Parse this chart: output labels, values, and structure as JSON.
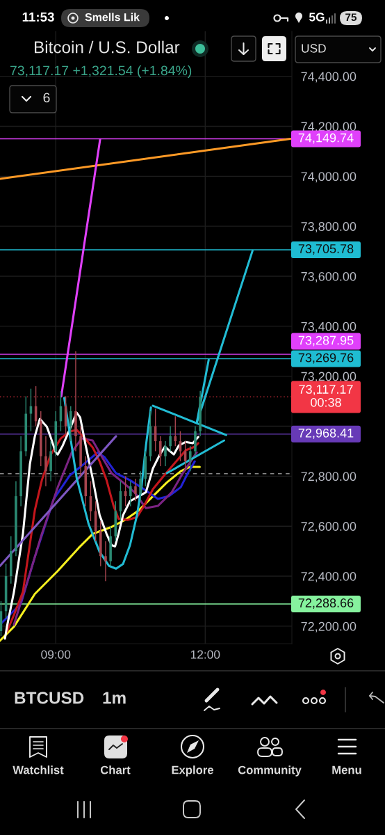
{
  "chart_data": {
    "type": "candlestick",
    "title": "Bitcoin / U.S. Dollar",
    "subtitle": "73,117.17 +1,321.54 (+1.84%)",
    "x": [
      7.9,
      8.0,
      8.1,
      8.2,
      8.3,
      8.4,
      8.5,
      8.6,
      8.7,
      8.8,
      8.9,
      9.0,
      9.1,
      9.2,
      9.3,
      9.4,
      9.5,
      9.6,
      9.7,
      9.8,
      9.9,
      10.0,
      10.1,
      10.2,
      10.3,
      10.4,
      10.5,
      10.6,
      10.7,
      10.8,
      10.9,
      11.0,
      11.1,
      11.2,
      11.3,
      11.4,
      11.5,
      11.6,
      11.7,
      11.8,
      11.9
    ],
    "ohlc": [
      [
        72180,
        72300,
        72160,
        72260
      ],
      [
        72260,
        72450,
        72230,
        72400
      ],
      [
        72400,
        72560,
        72370,
        72500
      ],
      [
        72500,
        72780,
        72480,
        72720
      ],
      [
        72720,
        72960,
        72680,
        72900
      ],
      [
        72900,
        73120,
        72880,
        73050
      ],
      [
        73050,
        73150,
        72980,
        73080
      ],
      [
        73080,
        73160,
        73000,
        73020
      ],
      [
        73020,
        73060,
        72840,
        72880
      ],
      [
        72880,
        72960,
        72760,
        72820
      ],
      [
        72820,
        72940,
        72780,
        72900
      ],
      [
        72900,
        73060,
        72880,
        73020
      ],
      [
        73020,
        73140,
        72980,
        73080
      ],
      [
        73080,
        73120,
        72960,
        73000
      ],
      [
        73000,
        73080,
        72940,
        73060
      ],
      [
        73060,
        73300,
        72900,
        72960
      ],
      [
        72960,
        73000,
        72800,
        72840
      ],
      [
        72840,
        72880,
        72680,
        72720
      ],
      [
        72720,
        72780,
        72620,
        72660
      ],
      [
        72660,
        72700,
        72540,
        72580
      ],
      [
        72580,
        72620,
        72440,
        72480
      ],
      [
        72480,
        72540,
        72380,
        72460
      ],
      [
        72460,
        72600,
        72440,
        72560
      ],
      [
        72560,
        72700,
        72540,
        72660
      ],
      [
        72660,
        72780,
        72620,
        72740
      ],
      [
        72740,
        72800,
        72680,
        72720
      ],
      [
        72720,
        72780,
        72680,
        72760
      ],
      [
        72760,
        72790,
        72700,
        72730
      ],
      [
        72730,
        72820,
        72700,
        72790
      ],
      [
        72790,
        72900,
        72760,
        72880
      ],
      [
        72880,
        73060,
        72860,
        73000
      ],
      [
        73000,
        73070,
        72900,
        72940
      ],
      [
        72940,
        72960,
        72840,
        72880
      ],
      [
        72880,
        72940,
        72840,
        72920
      ],
      [
        72920,
        73000,
        72900,
        72960
      ],
      [
        72960,
        73040,
        72920,
        72940
      ],
      [
        72940,
        72980,
        72860,
        72900
      ],
      [
        72900,
        72940,
        72820,
        72860
      ],
      [
        72860,
        72920,
        72820,
        72900
      ],
      [
        72900,
        73000,
        72880,
        72980
      ],
      [
        72980,
        73141,
        72960,
        73117.17
      ]
    ],
    "colors": [
      "#2b8a73",
      "#2b8a73",
      "#2b8a73",
      "#2b8a73",
      "#2b8a73",
      "#2b8a73",
      "#2b8a73",
      "#a8464f",
      "#a8464f",
      "#a8464f",
      "#2b8a73",
      "#2b8a73",
      "#2b8a73",
      "#a8464f",
      "#2b8a73",
      "#a8464f",
      "#a8464f",
      "#a8464f",
      "#a8464f",
      "#a8464f",
      "#a8464f",
      "#a8464f",
      "#2b8a73",
      "#2b8a73",
      "#2b8a73",
      "#a8464f",
      "#2b8a73",
      "#a8464f",
      "#2b8a73",
      "#2b8a73",
      "#2b8a73",
      "#a8464f",
      "#a8464f",
      "#2b8a73",
      "#2b8a73",
      "#a8464f",
      "#a8464f",
      "#a8464f",
      "#2b8a73",
      "#2b8a73",
      "#2b8a73"
    ],
    "series": [
      {
        "type": "line",
        "color": "#f5ef1f",
        "x": [
          7.88,
          8.16,
          8.58,
          9.04,
          9.46,
          9.74,
          10.12,
          10.39,
          10.67,
          10.95,
          11.23,
          11.51,
          11.69,
          11.89
        ],
        "values": [
          72142,
          72198,
          72329,
          72421,
          72513,
          72569,
          72597,
          72625,
          72664,
          72720,
          72775,
          72820,
          72837,
          72837
        ]
      },
      {
        "type": "line",
        "color": "#2222d4",
        "x": [
          7.88,
          8.3,
          8.58,
          8.96,
          9.28,
          9.56,
          9.84,
          9.98,
          10.21,
          10.49,
          10.77,
          11.05,
          11.27,
          11.51,
          11.65,
          11.79
        ],
        "values": [
          72206,
          72290,
          72477,
          72709,
          72803,
          72848,
          72895,
          72876,
          72812,
          72784,
          72748,
          72709,
          72720,
          72756,
          72812,
          72859
        ]
      },
      {
        "type": "line",
        "color": "#7b2382",
        "x": [
          8.16,
          8.44,
          8.72,
          9.04,
          9.32,
          9.52,
          9.74,
          9.93,
          10.12,
          10.35,
          10.58,
          10.81,
          11.05,
          11.33,
          11.55,
          11.83
        ],
        "values": [
          72206,
          72385,
          72569,
          72756,
          72895,
          72951,
          72943,
          72876,
          72812,
          72775,
          72736,
          72672,
          72681,
          72736,
          72812,
          72895
        ]
      },
      {
        "type": "line",
        "color": "#c4161c",
        "x": [
          8.02,
          8.16,
          8.34,
          8.58,
          8.72,
          8.9,
          9.1,
          9.28,
          9.42,
          9.56,
          9.74,
          9.88,
          10.02,
          10.16,
          10.26,
          10.44,
          10.63,
          10.77,
          10.95,
          11.13,
          11.37,
          11.61,
          11.79,
          11.86
        ],
        "values": [
          72178,
          72245,
          72337,
          72664,
          72784,
          72887,
          72951,
          72979,
          72985,
          72957,
          72915,
          72859,
          72784,
          72681,
          72630,
          72625,
          72636,
          72681,
          72748,
          72792,
          72848,
          72904,
          72918,
          72932
        ]
      },
      {
        "type": "line",
        "color": "#ffffff",
        "x": [
          7.98,
          8.02,
          8.16,
          8.34,
          8.48,
          8.58,
          8.68,
          8.82,
          8.89,
          9.0,
          9.04,
          9.14,
          9.28,
          9.42,
          9.49,
          9.6,
          9.74,
          9.88,
          10.02,
          10.12,
          10.19,
          10.26,
          10.35,
          10.49,
          10.67,
          10.81,
          10.95,
          11.09,
          11.19,
          11.27,
          11.37,
          11.47,
          11.61,
          11.75,
          11.86
        ],
        "values": [
          72150,
          72198,
          72337,
          72569,
          72848,
          72960,
          73029,
          72998,
          72960,
          72895,
          72887,
          72923,
          72988,
          73054,
          73035,
          72923,
          72792,
          72644,
          72569,
          72524,
          72519,
          72569,
          72644,
          72700,
          72720,
          72736,
          72831,
          72887,
          72918,
          72904,
          72887,
          72923,
          72937,
          72932,
          72957
        ]
      },
      {
        "type": "line",
        "color": "#7e57c2",
        "x": [
          7.88,
          10.21
        ],
        "values": [
          72441,
          72960
        ]
      },
      {
        "type": "line",
        "color": "#ff9a26",
        "x": [
          7.88,
          13.71
        ],
        "values": [
          73990,
          74150
        ]
      },
      {
        "type": "line",
        "color": "#e040fb",
        "x": [
          9.11,
          9.89
        ],
        "values": [
          73119,
          74148
        ]
      },
      {
        "type": "line",
        "color": "#22bcd4",
        "x": [
          9.17,
          9.42,
          9.66,
          9.88,
          10.07,
          10.21,
          10.35,
          10.49,
          10.63,
          10.72,
          10.81,
          10.91
        ],
        "values": [
          73113,
          72792,
          72608,
          72497,
          72441,
          72430,
          72449,
          72524,
          72644,
          72756,
          72923,
          73075
        ]
      },
      {
        "type": "line",
        "color": "#22bcd4",
        "x": [
          10.95,
          12.42
        ],
        "values": [
          73082,
          72965
        ]
      },
      {
        "type": "line",
        "color": "#22bcd4",
        "x": [
          11.23,
          12.38
        ],
        "values": [
          72812,
          72943
        ]
      },
      {
        "type": "line",
        "color": "#22bcd4",
        "x": [
          11.83,
          12.07
        ],
        "values": [
          73013,
          73266
        ]
      },
      {
        "type": "line",
        "color": "#22bcd4",
        "x": [
          11.83,
          12.95
        ],
        "values": [
          73013,
          73702
        ]
      }
    ],
    "xlim": [
      7.88,
      13.74
    ],
    "xticks": [
      {
        "value": 9,
        "label": "09:00"
      },
      {
        "value": 12,
        "label": "12:00"
      }
    ],
    "ylim": [
      72130,
      74580
    ],
    "yticks": [
      {
        "value": 72200,
        "label": "72,200.00"
      },
      {
        "value": 72400,
        "label": "72,400.00"
      },
      {
        "value": 72600,
        "label": "72,600.00"
      },
      {
        "value": 72800,
        "label": "72,800.00"
      },
      {
        "value": 73000,
        "label": null
      },
      {
        "value": 73200,
        "label": "73,200.00"
      },
      {
        "value": 73400,
        "label": "73,400.00"
      },
      {
        "value": 73600,
        "label": "73,600.00"
      },
      {
        "value": 73800,
        "label": "73,800.00"
      },
      {
        "value": 74000,
        "label": "74,000.00"
      },
      {
        "value": 74200,
        "label": "74,200.00"
      },
      {
        "value": 74400,
        "label": "74,400.00"
      }
    ],
    "grid": true,
    "ref_lines": [
      {
        "axis": "y",
        "value": 74149.74,
        "label": "74,149.74",
        "color": "#e040fb"
      },
      {
        "axis": "y",
        "value": 73705.78,
        "label": "73,705.78",
        "color": "#1fbcd2"
      },
      {
        "axis": "y",
        "value": 73287.95,
        "label": "73,287.95",
        "color": "#e040fb"
      },
      {
        "axis": "y",
        "value": 73269.76,
        "label": "73,269.76",
        "color": "#1fbcd2"
      },
      {
        "axis": "y",
        "value": 73117.17,
        "label": "73,117.17\n00:38",
        "color": "#f23645",
        "line_style": "dotted"
      },
      {
        "axis": "y",
        "value": 72968.41,
        "label": "72,968.41",
        "color": "#673ab7"
      },
      {
        "axis": "y",
        "value": 72288.66,
        "label": "72,288.66",
        "color": "#86f29e"
      },
      {
        "axis": "y",
        "value": 72810,
        "color": "#8a8a8a",
        "line_style": "dashed"
      }
    ],
    "annotations": [
      "11:53",
      "Smells Lik",
      "5G",
      "75",
      "6",
      "USD",
      "BTCUSD",
      "1m",
      "Watchlist",
      "Chart",
      "Explore",
      "Community",
      "Menu"
    ]
  }
}
